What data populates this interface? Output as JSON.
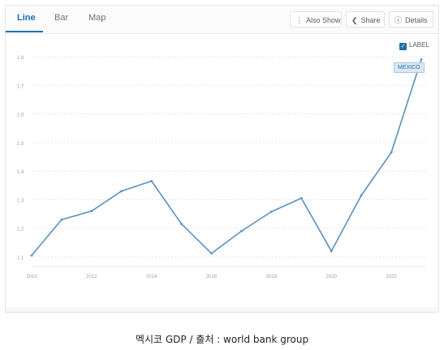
{
  "tabs": [
    {
      "label": "Line",
      "active": true
    },
    {
      "label": "Bar",
      "active": false
    },
    {
      "label": "Map",
      "active": false
    }
  ],
  "toolbar": {
    "also_show": "Also Show",
    "share": "Share",
    "details": "Details"
  },
  "label_toggle": {
    "text": "LABEL",
    "checked": true
  },
  "caption": "멕시코 GDP / 출처 : world bank group",
  "colors": {
    "line": "#5a8fc0",
    "accent": "#1f6fae",
    "grid": "#e6e8eb"
  },
  "chart_data": {
    "type": "line",
    "x": [
      2010,
      2011,
      2012,
      2013,
      2014,
      2015,
      2016,
      2017,
      2018,
      2019,
      2020,
      2021,
      2022,
      2023
    ],
    "series": [
      {
        "name": "MEXICO",
        "values": [
          1.105,
          1.23,
          1.26,
          1.33,
          1.365,
          1.215,
          1.112,
          1.19,
          1.258,
          1.305,
          1.12,
          1.315,
          1.465,
          1.79
        ]
      }
    ],
    "y_ticks": [
      "1.1",
      "1.2",
      "1.3",
      "1.4",
      "1.5",
      "1.6",
      "1.7",
      "1.8"
    ],
    "x_ticks": [
      "2010",
      "2012",
      "2014",
      "2016",
      "2018",
      "2020",
      "2022"
    ],
    "ylim": [
      1.1,
      1.8
    ],
    "xlim": [
      2010,
      2023
    ],
    "grid": true,
    "end_label": "MEXICO"
  }
}
